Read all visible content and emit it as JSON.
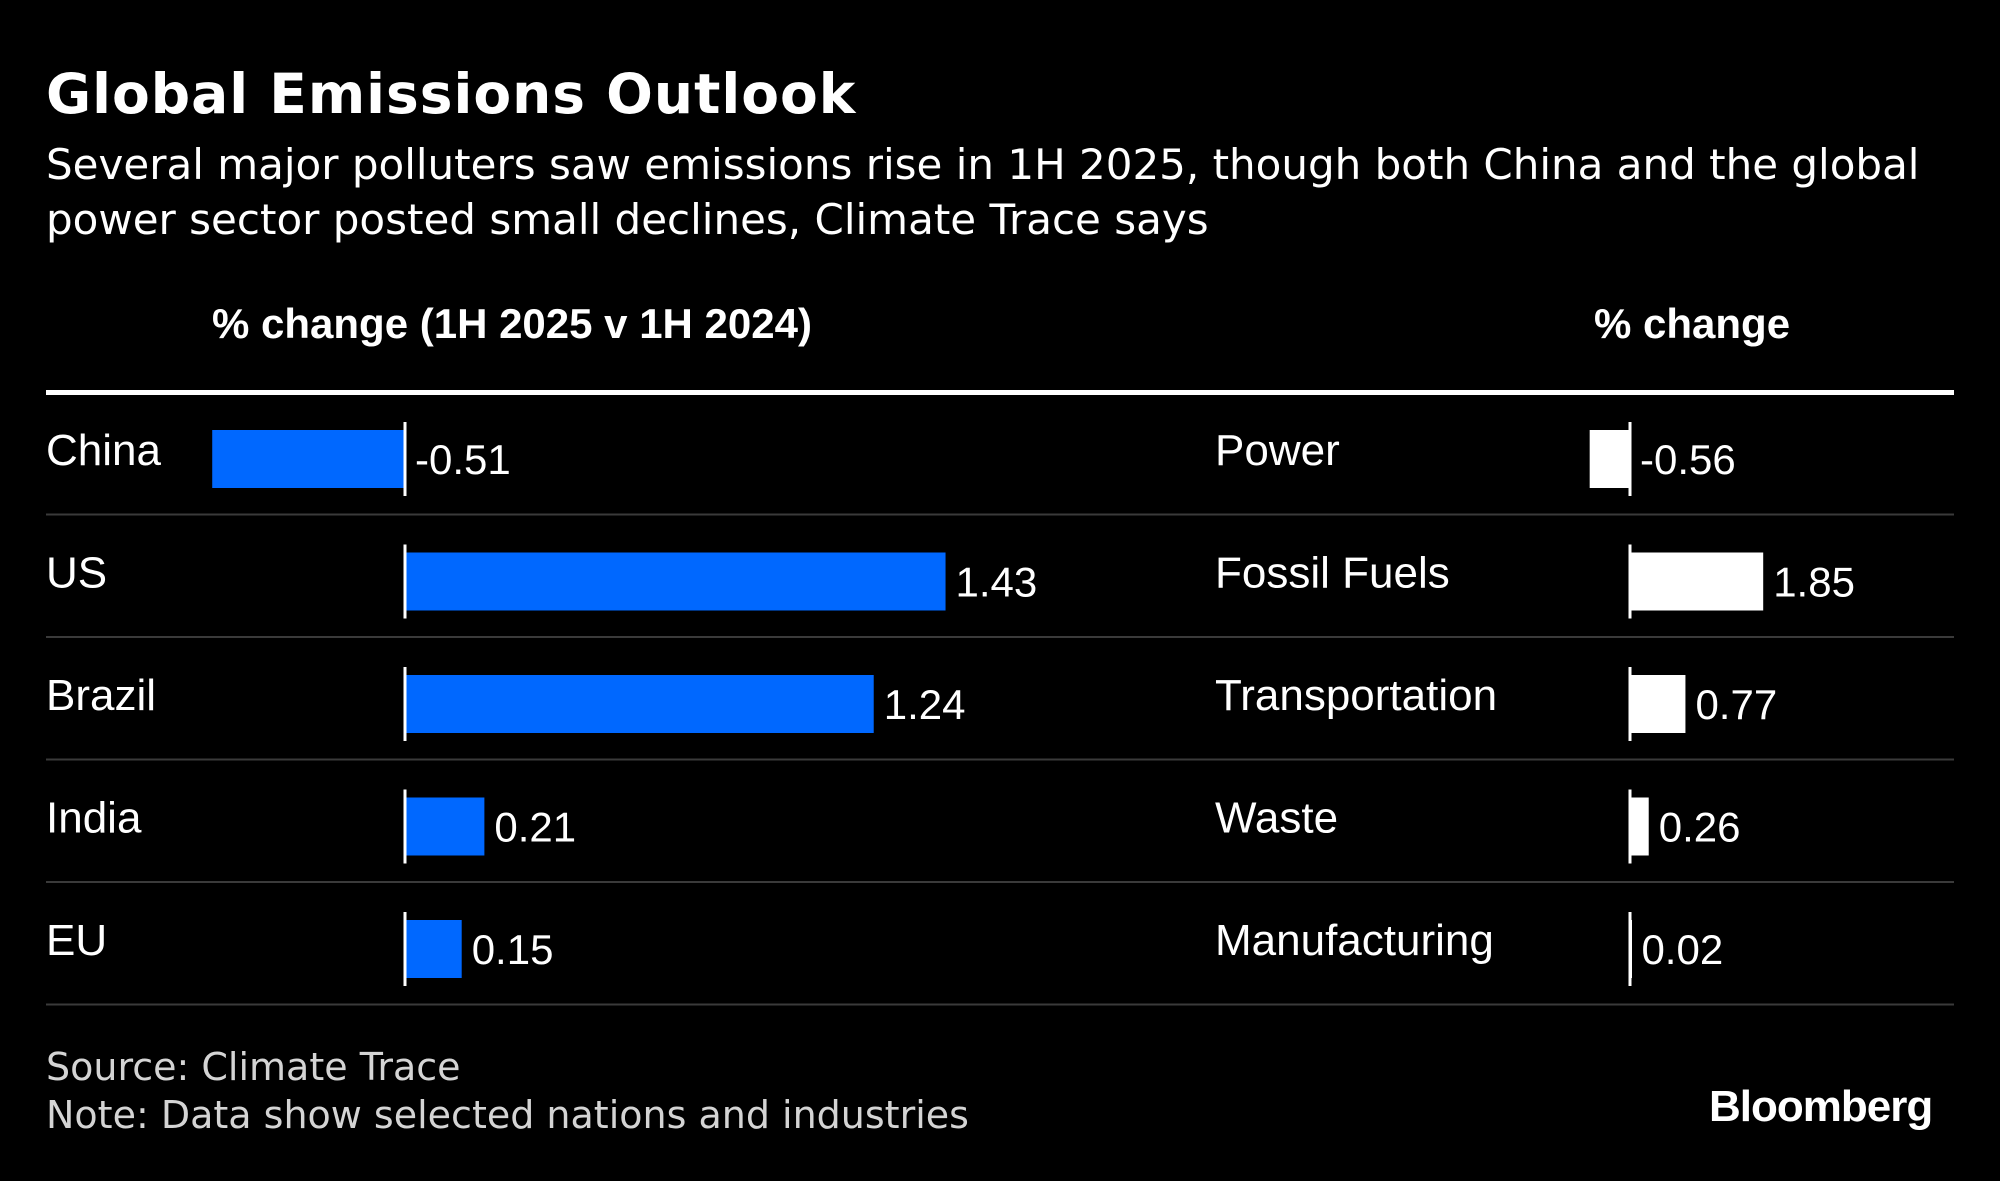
{
  "title": "Global Emissions Outlook",
  "subtitle": "Several major polluters saw emissions rise in 1H 2025, though both China and the global power sector posted small declines, Climate Trace says",
  "source": "Source: Climate Trace",
  "note": "Note: Data show selected nations and industries",
  "brand": "Bloomberg",
  "colors": {
    "background": "#000000",
    "countries_bar": "#0068ff",
    "sectors_bar": "#ffffff",
    "rule": "#ffffff",
    "row_divider": "#3a3a3a"
  },
  "chart_data": [
    {
      "type": "bar",
      "orientation": "horizontal",
      "header": "% change (1H 2025 v 1H 2024)",
      "categories": [
        "China",
        "US",
        "Brazil",
        "India",
        "EU"
      ],
      "values": [
        -0.51,
        1.43,
        1.24,
        0.21,
        0.15
      ],
      "value_labels": [
        "-0.51",
        "1.43",
        "1.24",
        "0.21",
        "0.15"
      ],
      "color": "#0068ff"
    },
    {
      "type": "bar",
      "orientation": "horizontal",
      "header": "% change",
      "categories": [
        "Power",
        "Fossil Fuels",
        "Transportation",
        "Waste",
        "Manufacturing"
      ],
      "values": [
        -0.56,
        1.85,
        0.77,
        0.26,
        0.02
      ],
      "value_labels": [
        "-0.56",
        "1.85",
        "0.77",
        "0.26",
        "0.02"
      ],
      "color": "#ffffff"
    }
  ]
}
